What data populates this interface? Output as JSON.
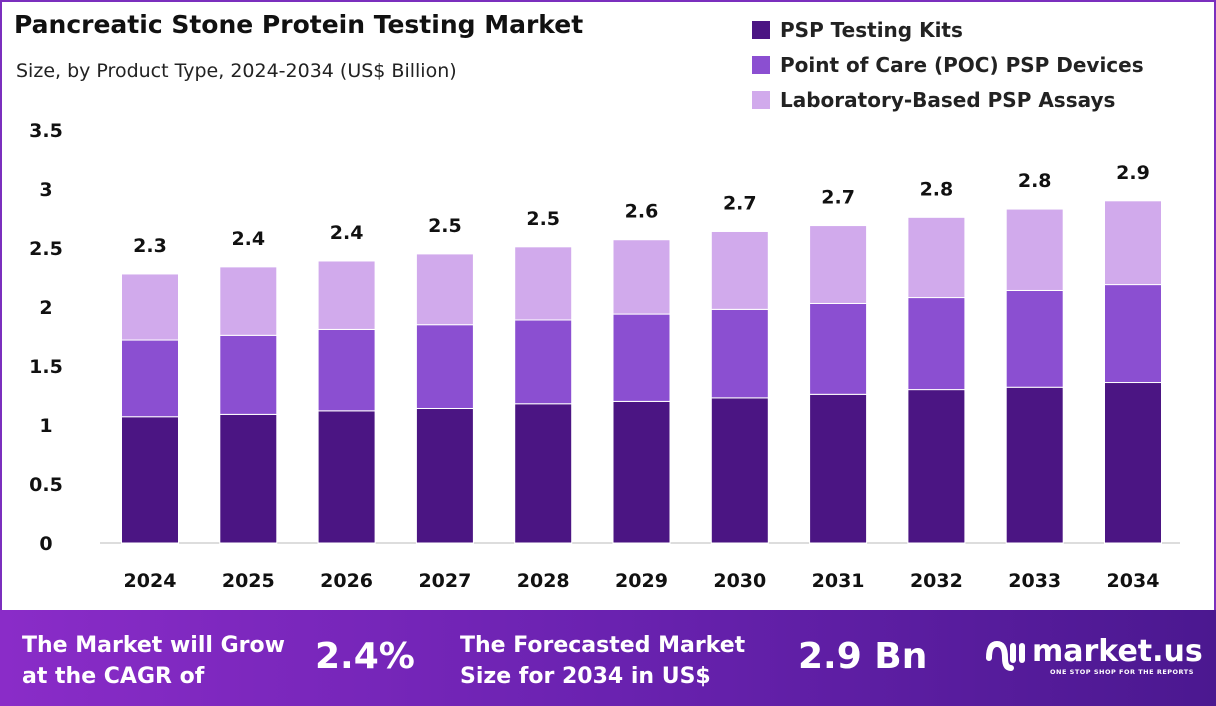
{
  "chart_data": {
    "type": "bar",
    "stacked": true,
    "title": "Pancreatic Stone Protein Testing Market",
    "subtitle": "Size, by Product Type, 2024-2034 (US$ Billion)",
    "categories": [
      "2024",
      "2025",
      "2026",
      "2027",
      "2028",
      "2029",
      "2030",
      "2031",
      "2032",
      "2033",
      "2034"
    ],
    "series": [
      {
        "name": "PSP Testing Kits",
        "color": "#4b1583",
        "values": [
          1.07,
          1.09,
          1.12,
          1.14,
          1.18,
          1.2,
          1.23,
          1.26,
          1.3,
          1.32,
          1.36
        ]
      },
      {
        "name": "Point of Care (POC) PSP Devices",
        "color": "#8b4fd1",
        "values": [
          0.65,
          0.67,
          0.69,
          0.71,
          0.71,
          0.74,
          0.75,
          0.77,
          0.78,
          0.82,
          0.83
        ]
      },
      {
        "name": "Laboratory-Based PSP Assays",
        "color": "#d1aaec",
        "values": [
          0.56,
          0.58,
          0.58,
          0.6,
          0.62,
          0.63,
          0.66,
          0.66,
          0.68,
          0.69,
          0.71
        ]
      }
    ],
    "total_labels": [
      "2.3",
      "2.4",
      "2.4",
      "2.5",
      "2.5",
      "2.6",
      "2.7",
      "2.7",
      "2.8",
      "2.8",
      "2.9"
    ],
    "yticks": [
      "0",
      "0.5",
      "1",
      "1.5",
      "2",
      "2.5",
      "3",
      "3.5"
    ],
    "ylim": [
      0,
      3.5
    ],
    "grid": false,
    "legend_position": "top-right"
  },
  "footer": {
    "cagr_text_1": "The Market will Grow",
    "cagr_text_2": "at the CAGR of",
    "cagr_value": "2.4%",
    "forecast_text_1": "The Forecasted Market",
    "forecast_text_2": "Size for 2034 in US$",
    "forecast_value": "2.9 Bn",
    "logo_text": "market.us",
    "logo_tagline": "ONE STOP SHOP FOR THE REPORTS"
  }
}
